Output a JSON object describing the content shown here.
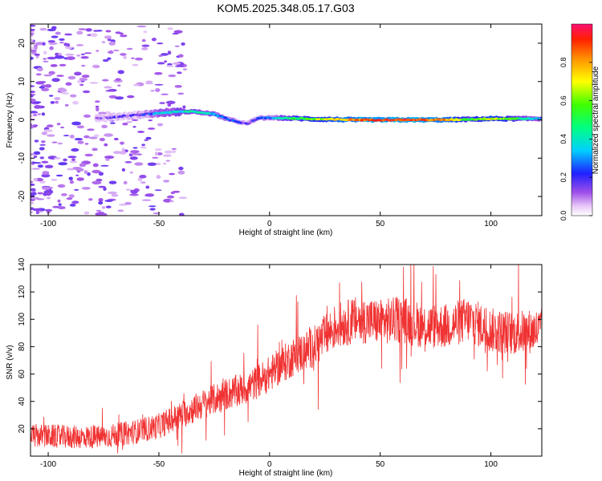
{
  "title": "KOM5.2025.348.05.17.G03",
  "chart_data": [
    {
      "type": "heatmap",
      "xlabel": "Height of straight line (km)",
      "ylabel": "Frequency (Hz)",
      "xlim": [
        -108,
        123
      ],
      "ylim": [
        -25,
        25
      ],
      "xticks": [
        -100,
        -50,
        0,
        50,
        100
      ],
      "yticks": [
        -20,
        -10,
        0,
        10,
        20
      ],
      "colorbar": {
        "label": "Normalized spectral amplitude",
        "range": [
          0,
          1
        ],
        "ticks": [
          "0.0",
          "0.2",
          "0.4",
          "0.6",
          "0.8"
        ]
      },
      "ridge": {
        "description_points_km_hz": [
          [
            -75,
            0.5
          ],
          [
            -65,
            1.0
          ],
          [
            -55,
            1.5
          ],
          [
            -45,
            2.0
          ],
          [
            -35,
            2.2
          ],
          [
            -25,
            1.5
          ],
          [
            -18,
            0.0
          ],
          [
            -10,
            -1.0
          ],
          [
            -5,
            0.5
          ],
          [
            5,
            0.5
          ],
          [
            20,
            0.2
          ],
          [
            40,
            0.0
          ],
          [
            60,
            0.0
          ],
          [
            80,
            0.0
          ],
          [
            100,
            0.3
          ],
          [
            123,
            0.3
          ]
        ],
        "amplitude_by_km": [
          [
            -75,
            0.12
          ],
          [
            -60,
            0.15
          ],
          [
            -50,
            0.3
          ],
          [
            -40,
            0.4
          ],
          [
            -30,
            0.4
          ],
          [
            -20,
            0.3
          ],
          [
            -10,
            0.15
          ],
          [
            0,
            0.25
          ],
          [
            10,
            0.5
          ],
          [
            20,
            0.6
          ],
          [
            40,
            0.85
          ],
          [
            60,
            0.92
          ],
          [
            80,
            0.8
          ],
          [
            90,
            0.5
          ],
          [
            100,
            0.7
          ],
          [
            123,
            0.3
          ]
        ]
      }
    },
    {
      "type": "line",
      "xlabel": "Height of straight line (km)",
      "ylabel": "SNR (v/v)",
      "xlim": [
        -108,
        123
      ],
      "ylim": [
        0,
        140
      ],
      "xticks": [
        -100,
        -50,
        0,
        50,
        100
      ],
      "yticks": [
        20,
        40,
        60,
        80,
        100,
        120,
        140
      ],
      "series": [
        {
          "name": "SNR",
          "color": "#f03232",
          "envelope_km_mean": [
            [
              -108,
              15
            ],
            [
              -90,
              14
            ],
            [
              -75,
              14
            ],
            [
              -60,
              18
            ],
            [
              -50,
              22
            ],
            [
              -40,
              30
            ],
            [
              -30,
              38
            ],
            [
              -20,
              45
            ],
            [
              -10,
              50
            ],
            [
              0,
              60
            ],
            [
              10,
              72
            ],
            [
              20,
              80
            ],
            [
              30,
              95
            ],
            [
              40,
              100
            ],
            [
              50,
              98
            ],
            [
              60,
              100
            ],
            [
              70,
              95
            ],
            [
              80,
              95
            ],
            [
              90,
              100
            ],
            [
              100,
              92
            ],
            [
              110,
              90
            ],
            [
              123,
              92
            ]
          ],
          "noise_amplitude": 12
        }
      ]
    }
  ]
}
